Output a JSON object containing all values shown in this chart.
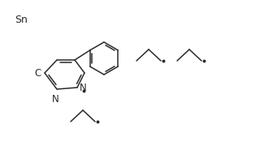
{
  "bg_color": "#ffffff",
  "line_color": "#2a2a2a",
  "text_color": "#2a2a2a",
  "dot_color": "#2a2a2a",
  "font_size": 8.5,
  "sn_label": "Sn",
  "c_label": "C",
  "n_label": "N",
  "lw": 1.1
}
